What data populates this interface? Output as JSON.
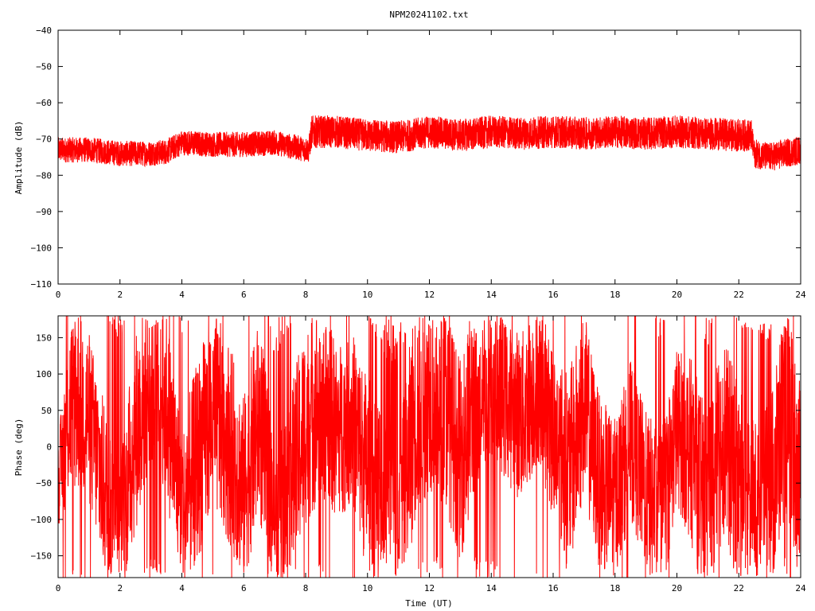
{
  "chart_data": [
    {
      "type": "line",
      "title": "NPM20241102.txt",
      "xlabel": "",
      "ylabel": "Amplitude (dB)",
      "xlim": [
        0,
        24
      ],
      "ylim": [
        -110,
        -40
      ],
      "x_ticks": [
        "0",
        "2",
        "4",
        "6",
        "8",
        "10",
        "12",
        "14",
        "16",
        "18",
        "20",
        "22",
        "24"
      ],
      "y_ticks": [
        "-110",
        "-100",
        "-90",
        "-80",
        "-70",
        "-60",
        "-50",
        "-40"
      ],
      "grid": false,
      "line_color": "#ff0000",
      "series": [
        {
          "x": [
            0,
            1,
            2,
            3,
            3.5,
            4,
            5,
            6,
            7,
            7.5,
            8.1,
            8.2,
            9,
            10,
            11,
            12,
            13,
            14,
            15,
            16,
            17,
            18,
            19,
            20,
            21,
            22,
            22.4,
            22.5,
            23,
            24
          ],
          "center": [
            -73,
            -73,
            -74,
            -74,
            -73.5,
            -71,
            -71.5,
            -71.5,
            -71,
            -72,
            -73,
            -68,
            -68,
            -69,
            -69.5,
            -68,
            -69,
            -68,
            -68.5,
            -68,
            -68.5,
            -68,
            -68.5,
            -68,
            -68.5,
            -69,
            -69,
            -74,
            -75,
            -73
          ],
          "spread": [
            7,
            7,
            7,
            7,
            7,
            7,
            7,
            7,
            7,
            7,
            7,
            9,
            9,
            9,
            9,
            9,
            9,
            9,
            9,
            9,
            9,
            9,
            9,
            9,
            9,
            9,
            9,
            8,
            8,
            8
          ]
        }
      ]
    },
    {
      "type": "line",
      "title": "",
      "xlabel": "Time (UT)",
      "ylabel": "Phase (deg)",
      "xlim": [
        0,
        24
      ],
      "ylim": [
        -180,
        180
      ],
      "x_ticks": [
        "0",
        "2",
        "4",
        "6",
        "8",
        "10",
        "12",
        "14",
        "16",
        "18",
        "20",
        "22",
        "24"
      ],
      "y_ticks": [
        "-150",
        "-100",
        "-50",
        "0",
        "50",
        "100",
        "150"
      ],
      "y_tick_values": [
        -150,
        -100,
        -50,
        0,
        50,
        100,
        150
      ],
      "grid": false,
      "line_color": "#ff0000",
      "series": [
        {
          "x": [
            0,
            0.5,
            1,
            1.5,
            2,
            2.5,
            3,
            3.5,
            4,
            4.5,
            5,
            5.5,
            6,
            6.5,
            7,
            7.5,
            8,
            8.5,
            9,
            9.5,
            10,
            10.5,
            11,
            11.5,
            12,
            12.5,
            13,
            13.5,
            14,
            14.5,
            15,
            15.5,
            16,
            16.5,
            17,
            17.5,
            18,
            18.5,
            19,
            19.5,
            20,
            20.5,
            21,
            21.5,
            22,
            22.5,
            23,
            23.5,
            24
          ],
          "center": [
            -50,
            80,
            40,
            -60,
            -120,
            20,
            100,
            60,
            -90,
            -20,
            50,
            10,
            -60,
            40,
            -120,
            -60,
            30,
            70,
            20,
            40,
            -40,
            -80,
            -140,
            40,
            80,
            60,
            -20,
            80,
            100,
            60,
            40,
            90,
            20,
            -40,
            60,
            -50,
            -70,
            10,
            -60,
            -100,
            30,
            -10,
            -100,
            20,
            -60,
            -80,
            -80,
            60,
            -60
          ],
          "spread": [
            60,
            140,
            120,
            120,
            100,
            140,
            120,
            130,
            120,
            140,
            140,
            140,
            130,
            140,
            120,
            140,
            140,
            140,
            120,
            120,
            140,
            150,
            150,
            150,
            140,
            140,
            140,
            140,
            110,
            110,
            120,
            110,
            120,
            140,
            130,
            120,
            110,
            110,
            110,
            120,
            110,
            130,
            140,
            140,
            140,
            120,
            140,
            150,
            140
          ]
        }
      ]
    }
  ]
}
